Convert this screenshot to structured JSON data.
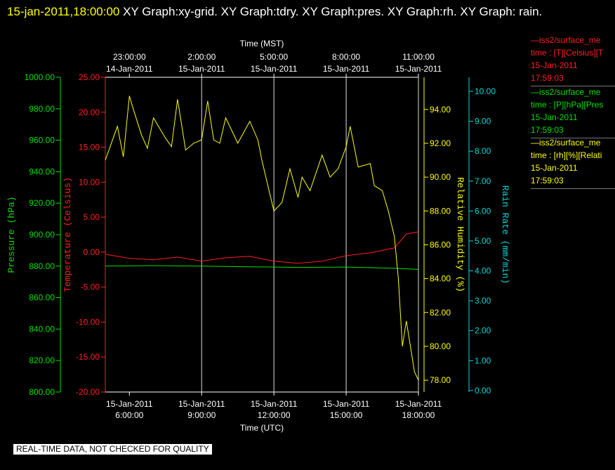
{
  "header": {
    "timestamp": "15-jan-2011,18:00:00",
    "title": "  XY Graph:xy-grid.  XY Graph:tdry.  XY Graph:pres.  XY Graph:rh.  XY Graph: rain."
  },
  "footer": {
    "quality_note": "REAL-TIME DATA, NOT CHECKED FOR QUALITY"
  },
  "legend": [
    {
      "name": "—iss2/surface_me",
      "units": "time : [T][Celsius][T",
      "date": "15-Jan-2011",
      "time": "17:59:03",
      "color": "#ff2020"
    },
    {
      "name": "—iss2/surface_me",
      "units": "time : [P][hPa][Pres",
      "date": "15-Jan-2011",
      "time": "17:59:03",
      "color": "#00e000"
    },
    {
      "name": "—iss2/surface_me",
      "units": "time : [rh][%][Relati",
      "date": "15-Jan-2011",
      "time": "17:59:03",
      "color": "#ffff00"
    }
  ],
  "chart_data": {
    "type": "line",
    "x_bottom": {
      "label": "Time (UTC)",
      "range": [
        "2011-01-15T05:00",
        "2011-01-15T18:00"
      ],
      "ticks": [
        {
          "t": "2011-01-15T06:00",
          "date": "15-Jan-2011",
          "time": "6:00:00"
        },
        {
          "t": "2011-01-15T09:00",
          "date": "15-Jan-2011",
          "time": "9:00:00"
        },
        {
          "t": "2011-01-15T12:00",
          "date": "15-Jan-2011",
          "time": "12:00:00"
        },
        {
          "t": "2011-01-15T15:00",
          "date": "15-Jan-2011",
          "time": "15:00:00"
        },
        {
          "t": "2011-01-15T18:00",
          "date": "15-Jan-2011",
          "time": "18:00:00"
        }
      ]
    },
    "x_top": {
      "label": "Time (MST)",
      "ticks": [
        {
          "t": "2011-01-15T06:00",
          "time": "23:00:00",
          "date": "14-Jan-2011"
        },
        {
          "t": "2011-01-15T09:00",
          "time": "2:00:00",
          "date": "15-Jan-2011"
        },
        {
          "t": "2011-01-15T12:00",
          "time": "5:00:00",
          "date": "15-Jan-2011"
        },
        {
          "t": "2011-01-15T15:00",
          "time": "8:00:00",
          "date": "15-Jan-2011"
        },
        {
          "t": "2011-01-15T18:00",
          "time": "11:00:00",
          "date": "15-Jan-2011"
        }
      ]
    },
    "grid": "vertical",
    "axes": {
      "pres": {
        "label": "Pressure (hPa)",
        "range": [
          800,
          1000
        ],
        "ticks": [
          "800.00",
          "820.00",
          "840.00",
          "860.00",
          "880.00",
          "900.00",
          "920.00",
          "940.00",
          "960.00",
          "980.00",
          "1000.00"
        ],
        "color": "#00e000"
      },
      "tdry": {
        "label": "Temperature (Celsius)",
        "range": [
          -20,
          25
        ],
        "ticks": [
          "-20.00",
          "-15.00",
          "-10.00",
          "-5.00",
          "0.00",
          "5.00",
          "10.00",
          "15.00",
          "20.00",
          "25.00"
        ],
        "color": "#ff2020"
      },
      "rh": {
        "label": "Relative Humidity (%)",
        "range": [
          77.3,
          95.9
        ],
        "ticks": [
          "78.00",
          "80.00",
          "82.00",
          "84.00",
          "86.00",
          "88.00",
          "90.00",
          "92.00",
          "94.00"
        ],
        "color": "#ffff00"
      },
      "rain": {
        "label": "Rain Rate (mm/min)",
        "range": [
          -0.05,
          10.47
        ],
        "ticks": [
          "0.00",
          "1.00",
          "2.00",
          "3.00",
          "4.00",
          "5.00",
          "6.00",
          "7.00",
          "8.00",
          "9.00",
          "10.00"
        ],
        "color": "#00d8d8"
      }
    },
    "series": [
      {
        "name": "iss2/surface_me",
        "axis": "tdry",
        "color": "#ff2020",
        "x": [
          "2011-01-15T05:00",
          "2011-01-15T06:00",
          "2011-01-15T07:00",
          "2011-01-15T08:00",
          "2011-01-15T09:00",
          "2011-01-15T10:00",
          "2011-01-15T11:00",
          "2011-01-15T12:00",
          "2011-01-15T13:00",
          "2011-01-15T14:00",
          "2011-01-15T15:00",
          "2011-01-15T16:00",
          "2011-01-15T17:00",
          "2011-01-15T17:30",
          "2011-01-15T18:00"
        ],
        "values": [
          -0.3,
          -0.9,
          -1.1,
          -0.7,
          -1.3,
          -0.8,
          -0.6,
          -1.3,
          -1.6,
          -1.3,
          -0.5,
          -0.1,
          0.6,
          2.6,
          2.9
        ]
      },
      {
        "name": "iss2/surface_me",
        "axis": "pres",
        "color": "#00e000",
        "x": [
          "2011-01-15T05:00",
          "2011-01-15T07:00",
          "2011-01-15T09:00",
          "2011-01-15T11:00",
          "2011-01-15T13:00",
          "2011-01-15T15:00",
          "2011-01-15T17:00",
          "2011-01-15T18:00"
        ],
        "values": [
          880.0,
          880.3,
          880.0,
          879.6,
          879.2,
          879.4,
          878.6,
          877.9
        ]
      },
      {
        "name": "iss2/surface_me",
        "axis": "rh",
        "color": "#ffff00",
        "x": [
          "2011-01-15T05:00",
          "2011-01-15T05:15",
          "2011-01-15T05:30",
          "2011-01-15T05:45",
          "2011-01-15T06:00",
          "2011-01-15T06:10",
          "2011-01-15T06:30",
          "2011-01-15T06:45",
          "2011-01-15T07:00",
          "2011-01-15T07:30",
          "2011-01-15T07:45",
          "2011-01-15T08:00",
          "2011-01-15T08:20",
          "2011-01-15T08:40",
          "2011-01-15T09:00",
          "2011-01-15T09:15",
          "2011-01-15T09:30",
          "2011-01-15T09:45",
          "2011-01-15T10:00",
          "2011-01-15T10:30",
          "2011-01-15T11:00",
          "2011-01-15T11:20",
          "2011-01-15T11:30",
          "2011-01-15T11:50",
          "2011-01-15T12:00",
          "2011-01-15T12:20",
          "2011-01-15T12:40",
          "2011-01-15T13:00",
          "2011-01-15T13:10",
          "2011-01-15T13:30",
          "2011-01-15T14:00",
          "2011-01-15T14:20",
          "2011-01-15T14:40",
          "2011-01-15T15:00",
          "2011-01-15T15:10",
          "2011-01-15T15:30",
          "2011-01-15T16:00",
          "2011-01-15T16:10",
          "2011-01-15T16:30",
          "2011-01-15T16:45",
          "2011-01-15T17:00",
          "2011-01-15T17:10",
          "2011-01-15T17:20",
          "2011-01-15T17:30",
          "2011-01-15T17:40",
          "2011-01-15T17:50",
          "2011-01-15T18:00"
        ],
        "values": [
          91.0,
          92.0,
          93.0,
          91.2,
          94.8,
          94.0,
          92.5,
          91.7,
          93.5,
          92.3,
          91.8,
          94.6,
          91.6,
          92.0,
          92.2,
          94.5,
          92.2,
          92.0,
          93.5,
          92.0,
          93.3,
          92.2,
          91.0,
          89.0,
          88.0,
          88.5,
          90.5,
          88.8,
          90.0,
          89.2,
          91.3,
          90.0,
          90.5,
          91.8,
          93.0,
          90.6,
          90.8,
          89.5,
          89.2,
          88.0,
          86.5,
          84.0,
          80.0,
          81.5,
          80.0,
          78.5,
          78.0
        ]
      },
      {
        "name": "iss2/surface_me",
        "axis": "rain",
        "color": "#00d8d8",
        "x": [],
        "values": []
      }
    ]
  }
}
